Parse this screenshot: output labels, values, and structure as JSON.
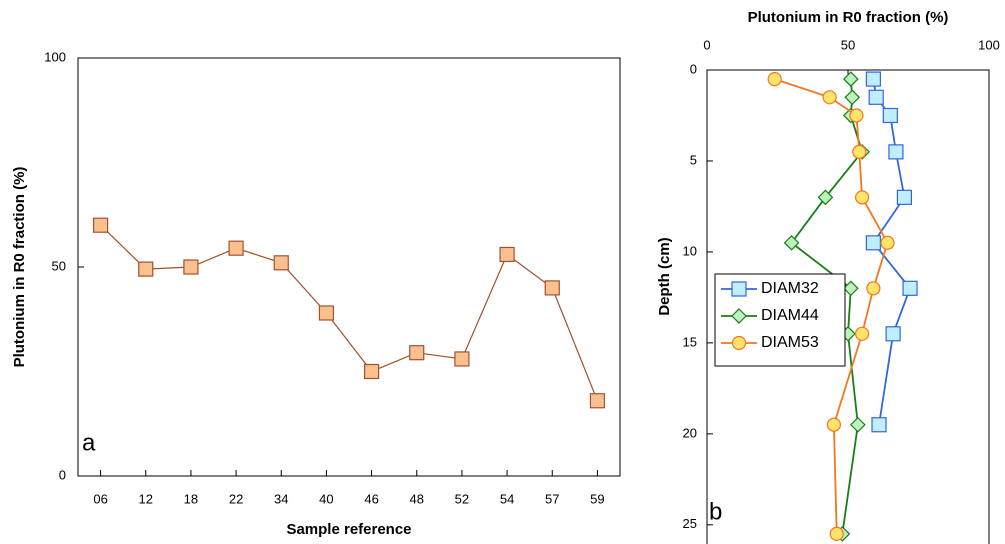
{
  "chart_data": [
    {
      "type": "line",
      "ylabel": "Plutonium in R0 fraction (%)",
      "xlabel": "Sample reference",
      "annotation": "a",
      "categories": [
        "06",
        "12",
        "18",
        "22",
        "34",
        "40",
        "46",
        "48",
        "52",
        "54",
        "57",
        "59"
      ],
      "values": [
        60,
        49.5,
        50,
        54.5,
        51,
        39,
        25,
        29.5,
        28,
        53,
        45,
        18
      ],
      "color": "#a0522d",
      "marker_color": "#fbc08f",
      "marker": "square",
      "ylim": [
        0,
        100
      ],
      "yticks": [
        0,
        50,
        100
      ]
    },
    {
      "type": "profile",
      "xlabel": "Plutonium in R0 fraction (%)",
      "ylabel": "Depth (cm)",
      "annotation": "b",
      "xlim": [
        0,
        100
      ],
      "xticks": [
        0,
        50,
        100
      ],
      "ylim": [
        0,
        26
      ],
      "yticks": [
        0,
        5,
        10,
        15,
        20,
        25
      ],
      "y_inverted": true,
      "legend": "left",
      "series": [
        {
          "name": "DIAM32",
          "color": "#3366dd",
          "marker_color": "#bfeeff",
          "marker": "square",
          "x": [
            59,
            60,
            65,
            67,
            70,
            59,
            72,
            66,
            61
          ],
          "y": [
            0.5,
            1.5,
            2.5,
            4.5,
            7,
            9.5,
            12,
            14.5,
            19.5
          ]
        },
        {
          "name": "DIAM44",
          "color": "#168016",
          "marker_color": "#bff0bf",
          "marker": "diamond",
          "x": [
            51,
            51.5,
            51,
            55,
            42,
            30,
            51,
            50,
            53.5,
            48
          ],
          "y": [
            0.5,
            1.5,
            2.5,
            4.5,
            7,
            9.5,
            12,
            14.5,
            19.5,
            25.5
          ]
        },
        {
          "name": "DIAM53",
          "color": "#f07820",
          "marker_color": "#ffe36a",
          "marker": "circle",
          "x": [
            24,
            43.5,
            53,
            54,
            55,
            64,
            59,
            55,
            45,
            46
          ],
          "y": [
            0.5,
            1.5,
            2.5,
            4.5,
            7,
            9.5,
            12,
            14.5,
            19.5,
            25.5
          ]
        }
      ]
    }
  ]
}
